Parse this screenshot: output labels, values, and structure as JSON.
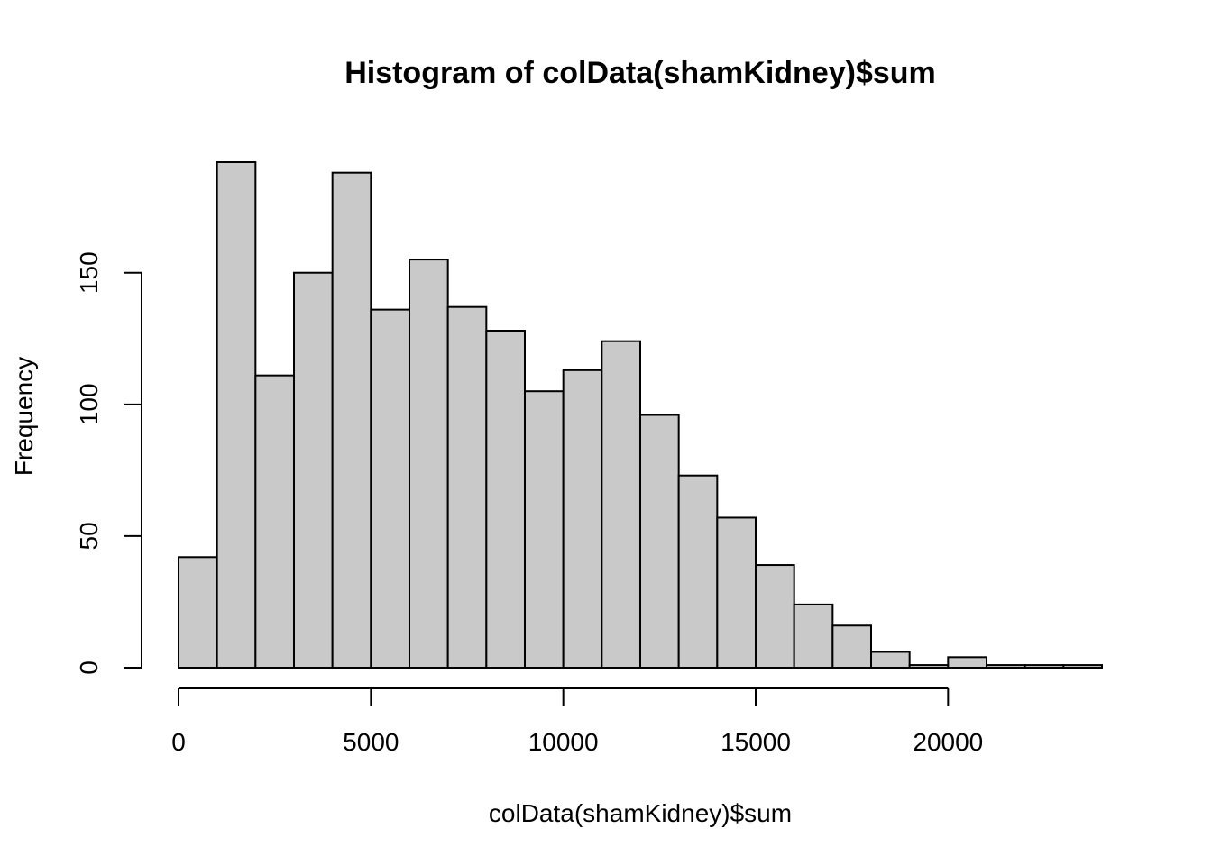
{
  "chart_data": {
    "type": "histogram",
    "title": "Histogram of colData(shamKidney)$sum",
    "xlabel": "colData(shamKidney)$sum",
    "ylabel": "Frequency",
    "bin_width": 1000,
    "bin_edges": [
      0,
      1000,
      2000,
      3000,
      4000,
      5000,
      6000,
      7000,
      8000,
      9000,
      10000,
      11000,
      12000,
      13000,
      14000,
      15000,
      16000,
      17000,
      18000,
      19000,
      20000,
      21000,
      22000,
      23000,
      24000
    ],
    "values": [
      42,
      192,
      111,
      150,
      188,
      136,
      155,
      137,
      128,
      105,
      113,
      124,
      96,
      73,
      57,
      39,
      24,
      16,
      6,
      1,
      4,
      1,
      1,
      1
    ],
    "x_ticks": [
      0,
      5000,
      10000,
      15000,
      20000
    ],
    "y_ticks": [
      0,
      50,
      100,
      150
    ],
    "xlim": [
      0,
      24000
    ],
    "ylim": [
      0,
      192
    ],
    "grid": false
  }
}
